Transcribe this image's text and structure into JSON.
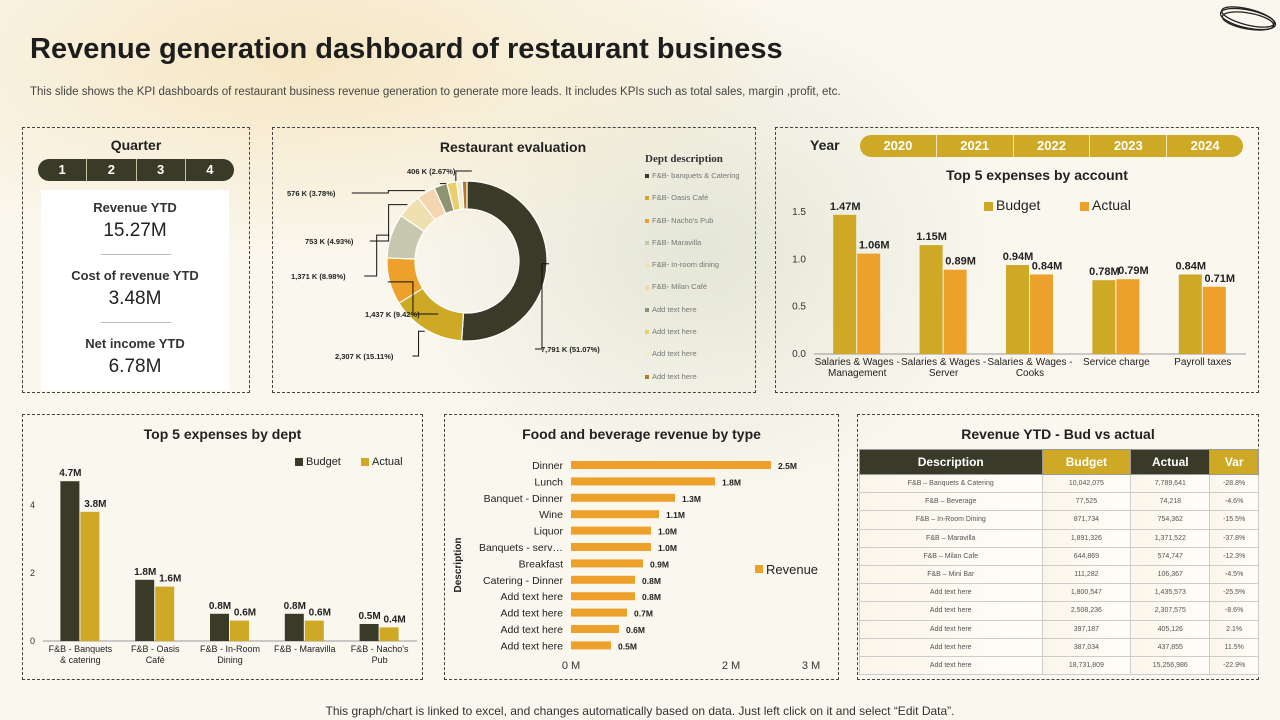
{
  "header": {
    "title": "Revenue generation dashboard of restaurant business",
    "subtitle": "This slide shows the KPI dashboards of restaurant business revenue generation to generate more leads. It includes KPIs such as total sales, margin ,profit, etc."
  },
  "quarter": {
    "title": "Quarter",
    "options": [
      "1",
      "2",
      "3",
      "4"
    ],
    "kpis": [
      {
        "label": "Revenue YTD",
        "value": "15.27M"
      },
      {
        "label": "Cost of revenue YTD",
        "value": "3.48M"
      },
      {
        "label": "Net income YTD",
        "value": "6.78M"
      }
    ]
  },
  "year": {
    "label": "Year",
    "options": [
      "2020",
      "2021",
      "2022",
      "2023",
      "2024"
    ]
  },
  "colors": {
    "dark": "#3a3a28",
    "gold": "#cda925",
    "orange": "#eda12a"
  },
  "chart_data": [
    {
      "id": "restaurant-evaluation",
      "type": "pie",
      "title": "Restaurant evaluation",
      "legend_title": "Dept description",
      "slices": [
        {
          "name": "F&B- banquets & Catering",
          "value": 7791,
          "label": "7,791  K (51.07%)",
          "color": "#3a3a28"
        },
        {
          "name": "F&B- Oasis Café",
          "value": 2307,
          "label": "2,307  K (15.11%)",
          "color": "#cda925"
        },
        {
          "name": "F&B- Nacho's Pub",
          "value": 1437,
          "label": "1,437  K (9.42%)",
          "color": "#eda12a"
        },
        {
          "name": "F&B- Maravilla",
          "value": 1371,
          "label": "1,371  K (8.98%)",
          "color": "#c8c8ae"
        },
        {
          "name": "F&B- In-room dining",
          "value": 753,
          "label": "753  K (4.93%)",
          "color": "#efe0b0"
        },
        {
          "name": "F&B- Milan Café",
          "value": 576,
          "label": "576  K (3.78%)",
          "color": "#f5d5b0"
        },
        {
          "name": "Add text here",
          "value": 406,
          "label": "406  K (2.67%)",
          "color": "#8e9472"
        },
        {
          "name": "Add text here",
          "value": 300,
          "label": "",
          "color": "#e8cf6a"
        },
        {
          "name": "Add text here",
          "value": 170,
          "label": "",
          "color": "#f4ebcf"
        },
        {
          "name": "Add text here",
          "value": 146,
          "label": "",
          "color": "#b07a2a"
        }
      ]
    },
    {
      "id": "top5-expenses-account",
      "type": "bar",
      "title": "Top 5 expenses by account",
      "ylim": [
        0,
        1.5
      ],
      "yticks": [
        "0.0",
        "0.5",
        "1.0",
        "1.5"
      ],
      "categories": [
        [
          "Salaries & Wages -",
          "Management"
        ],
        [
          "Salaries & Wages -",
          "Server"
        ],
        [
          "Salaries & Wages -",
          "Cooks"
        ],
        [
          "Service charge",
          ""
        ],
        [
          "Payroll taxes",
          ""
        ]
      ],
      "series": [
        {
          "name": "Budget",
          "values": [
            1.47,
            1.15,
            0.94,
            0.78,
            0.84
          ],
          "labels": [
            "1.47M",
            "1.15M",
            "0.94M",
            "0.78M",
            "0.84M"
          ],
          "color": "#cda925"
        },
        {
          "name": "Actual",
          "values": [
            1.06,
            0.89,
            0.84,
            0.79,
            0.71
          ],
          "labels": [
            "1.06M",
            "0.89M",
            "0.84M",
            "0.79M",
            "0.71M"
          ],
          "color": "#eda12a"
        }
      ],
      "legend": "top"
    },
    {
      "id": "top5-expenses-dept",
      "type": "bar",
      "title": "Top 5 expenses by dept",
      "ylim": [
        0,
        5
      ],
      "yticks": [
        "0",
        "2",
        "4"
      ],
      "categories": [
        [
          "F&B - Banquets",
          "& catering"
        ],
        [
          "F&B - Oasis",
          "Café"
        ],
        [
          "F&B - In-Room",
          "Dining"
        ],
        [
          "F&B - Maravilla",
          ""
        ],
        [
          "F&B - Nacho's",
          "Pub"
        ]
      ],
      "series": [
        {
          "name": "Budget",
          "values": [
            4.7,
            1.8,
            0.8,
            0.8,
            0.5
          ],
          "labels": [
            "4.7M",
            "1.8M",
            "0.8M",
            "0.8M",
            "0.5M"
          ],
          "color": "#3a3a28"
        },
        {
          "name": "Actual",
          "values": [
            3.8,
            1.6,
            0.6,
            0.6,
            0.4
          ],
          "labels": [
            "3.8M",
            "1.6M",
            "0.6M",
            "0.6M",
            "0.4M"
          ],
          "color": "#cda925"
        }
      ],
      "legend": "top-right"
    },
    {
      "id": "fb-revenue-by-type",
      "type": "bar",
      "orientation": "horizontal",
      "title": "Food and beverage revenue by type",
      "ylabel": "Description",
      "xlim": [
        0,
        3
      ],
      "xticks": [
        "0 M",
        "2 M",
        "3 M"
      ],
      "categories": [
        "Dinner",
        "Lunch",
        "Banquet - Dinner",
        "Wine",
        "Liquor",
        "Banquets - serv…",
        "Breakfast",
        "Catering - Dinner",
        "Add text here",
        "Add text here",
        "Add text here",
        "Add text here"
      ],
      "series": [
        {
          "name": "Revenue",
          "values": [
            2.5,
            1.8,
            1.3,
            1.1,
            1.0,
            1.0,
            0.9,
            0.8,
            0.8,
            0.7,
            0.6,
            0.5
          ],
          "labels": [
            "2.5M",
            "1.8M",
            "1.3M",
            "1.1M",
            "1.0M",
            "1.0M",
            "0.9M",
            "0.8M",
            "0.8M",
            "0.7M",
            "0.6M",
            "0.5M"
          ],
          "color": "#eda12a"
        }
      ],
      "legend": "right"
    },
    {
      "id": "revenue-ytd-table",
      "type": "table",
      "title": "Revenue YTD - Bud vs actual",
      "columns": [
        "Description",
        "Budget",
        "Actual",
        "Var"
      ],
      "rows": [
        [
          "F&B – Banquets & Catering",
          "10,042,075",
          "7,789,641",
          "-28.8%"
        ],
        [
          "F&B – Beverage",
          "77,525",
          "74,218",
          "-4.6%"
        ],
        [
          "F&B – In-Room Dining",
          "871,734",
          "754,362",
          "-15.5%"
        ],
        [
          "F&B – Maravilla",
          "1,891,326",
          "1,371,522",
          "-37.8%"
        ],
        [
          "F&B – Milan Cafe",
          "644,869",
          "574,747",
          "-12.3%"
        ],
        [
          "F&B – Mini Bar",
          "111,282",
          "106,367",
          "-4.5%"
        ],
        [
          "Add text here",
          "1,800,547",
          "1,435,573",
          "-25.5%"
        ],
        [
          "Add text here",
          "2,508,236",
          "2,307,575",
          "-8.6%"
        ],
        [
          "Add text here",
          "397,187",
          "405,126",
          "2.1%"
        ],
        [
          "Add text here",
          "387,034",
          "437,855",
          "11.5%"
        ],
        [
          "Add text here",
          "18,731,809",
          "15,256,986",
          "-22.9%"
        ]
      ]
    }
  ],
  "footer": "This graph/chart is linked to excel,  and changes automatically based on data. Just left click on it and select “Edit Data”."
}
